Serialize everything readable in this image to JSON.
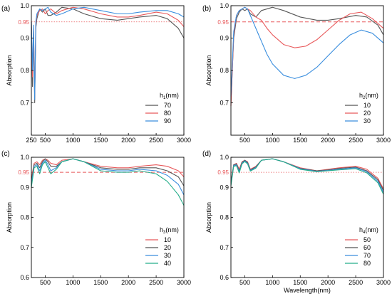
{
  "colors": {
    "black": "#555555",
    "red": "#e8595b",
    "blue": "#3a8ede",
    "green": "#25ad8a",
    "reference": "#e8595b"
  },
  "chart_data": [
    {
      "type": "line",
      "panel_label": "(a)",
      "xlabel": "",
      "ylabel": "Absorption",
      "xlim": [
        250,
        3000
      ],
      "ylim": [
        0.6,
        1.0
      ],
      "xticks": [
        "250",
        "500",
        "1000",
        "1500",
        "2000",
        "2500",
        "3000"
      ],
      "xtick_values": [
        250,
        500,
        1000,
        1500,
        2000,
        2500,
        3000
      ],
      "yticks": [
        "0.7",
        "0.8",
        "0.9",
        "0.95",
        "1.0"
      ],
      "ytick_values": [
        0.7,
        0.8,
        0.9,
        0.95,
        1.0
      ],
      "reference_line": {
        "y": 0.95,
        "label": "0.95",
        "style": "dotted"
      },
      "legend": {
        "title_base": "h",
        "title_sub": "1",
        "title_suffix": "(nm)",
        "position": "right"
      },
      "series": [
        {
          "name": "70",
          "color_key": "black",
          "x": [
            250,
            270,
            290,
            310,
            330,
            350,
            400,
            450,
            500,
            550,
            600,
            700,
            800,
            1000,
            1200,
            1500,
            1800,
            2000,
            2200,
            2500,
            2700,
            2900,
            3000
          ],
          "y": [
            0.95,
            0.75,
            0.92,
            0.7,
            0.93,
            0.96,
            0.99,
            0.98,
            0.99,
            0.97,
            0.97,
            0.98,
            0.995,
            0.99,
            0.975,
            0.96,
            0.955,
            0.96,
            0.965,
            0.97,
            0.96,
            0.93,
            0.9
          ]
        },
        {
          "name": "80",
          "color_key": "red",
          "x": [
            250,
            270,
            290,
            310,
            330,
            350,
            400,
            450,
            500,
            550,
            600,
            700,
            800,
            1000,
            1200,
            1500,
            1800,
            2000,
            2200,
            2500,
            2700,
            2900,
            3000
          ],
          "y": [
            0.95,
            0.78,
            0.93,
            0.72,
            0.94,
            0.97,
            0.985,
            0.99,
            0.975,
            0.985,
            0.99,
            0.975,
            0.985,
            0.995,
            0.99,
            0.975,
            0.965,
            0.965,
            0.97,
            0.98,
            0.975,
            0.955,
            0.935
          ]
        },
        {
          "name": "90",
          "color_key": "blue",
          "x": [
            250,
            270,
            290,
            310,
            330,
            350,
            400,
            450,
            500,
            550,
            600,
            700,
            800,
            1000,
            1200,
            1500,
            1800,
            2000,
            2200,
            2500,
            2700,
            2900,
            3000
          ],
          "y": [
            0.95,
            0.8,
            0.94,
            0.71,
            0.95,
            0.975,
            0.99,
            0.985,
            0.99,
            0.995,
            0.98,
            0.97,
            0.975,
            0.99,
            0.995,
            0.985,
            0.975,
            0.975,
            0.98,
            0.985,
            0.985,
            0.975,
            0.965
          ]
        }
      ]
    },
    {
      "type": "line",
      "panel_label": "(b)",
      "xlabel": "",
      "ylabel": "Absorption",
      "xlim": [
        250,
        3000
      ],
      "ylim": [
        0.6,
        1.0
      ],
      "xticks": [
        "500",
        "1000",
        "1500",
        "2000",
        "2500",
        "3000"
      ],
      "xtick_values": [
        500,
        1000,
        1500,
        2000,
        2500,
        3000
      ],
      "yticks": [
        "0.7",
        "0.8",
        "0.9",
        "0.95",
        "1.0"
      ],
      "ytick_values": [
        0.7,
        0.8,
        0.9,
        0.95,
        1.0
      ],
      "reference_line": {
        "y": 0.95,
        "label": "0.95",
        "style": "dashed"
      },
      "legend": {
        "title_base": "h",
        "title_sub": "2",
        "title_suffix": "(nm)",
        "position": "right"
      },
      "series": [
        {
          "name": "10",
          "color_key": "black",
          "x": [
            250,
            300,
            350,
            400,
            450,
            500,
            550,
            600,
            700,
            800,
            1000,
            1200,
            1500,
            1800,
            2000,
            2200,
            2500,
            2700,
            2900,
            3000
          ],
          "y": [
            0.7,
            0.9,
            0.96,
            0.98,
            0.99,
            0.985,
            0.99,
            0.975,
            0.965,
            0.985,
            0.995,
            0.985,
            0.965,
            0.955,
            0.955,
            0.96,
            0.97,
            0.965,
            0.94,
            0.91
          ]
        },
        {
          "name": "20",
          "color_key": "red",
          "x": [
            250,
            300,
            350,
            400,
            450,
            500,
            550,
            600,
            700,
            800,
            900,
            1000,
            1200,
            1400,
            1600,
            1800,
            2000,
            2200,
            2400,
            2600,
            2800,
            3000
          ],
          "y": [
            0.69,
            0.91,
            0.97,
            0.985,
            0.99,
            0.995,
            0.99,
            0.985,
            0.965,
            0.955,
            0.93,
            0.91,
            0.88,
            0.87,
            0.875,
            0.895,
            0.925,
            0.955,
            0.975,
            0.98,
            0.96,
            0.93
          ]
        },
        {
          "name": "30",
          "color_key": "blue",
          "x": [
            250,
            300,
            350,
            400,
            450,
            500,
            550,
            600,
            700,
            800,
            900,
            1000,
            1200,
            1400,
            1600,
            1800,
            2000,
            2200,
            2400,
            2600,
            2800,
            3000
          ],
          "y": [
            0.72,
            0.92,
            0.97,
            0.985,
            0.99,
            0.995,
            0.99,
            0.97,
            0.93,
            0.89,
            0.85,
            0.82,
            0.785,
            0.775,
            0.785,
            0.81,
            0.845,
            0.88,
            0.91,
            0.925,
            0.915,
            0.885
          ]
        }
      ]
    },
    {
      "type": "line",
      "panel_label": "(c)",
      "xlabel": "",
      "ylabel": "Absorption",
      "xlim": [
        250,
        3000
      ],
      "ylim": [
        0.6,
        1.0
      ],
      "xticks": [
        "500",
        "1000",
        "1500",
        "2000",
        "2500",
        "3000"
      ],
      "xtick_values": [
        500,
        1000,
        1500,
        2000,
        2500,
        3000
      ],
      "yticks": [
        "0.6",
        "0.7",
        "0.8",
        "0.9",
        "0.95",
        "1.0"
      ],
      "ytick_values": [
        0.6,
        0.7,
        0.8,
        0.9,
        0.95,
        1.0
      ],
      "reference_line": {
        "y": 0.95,
        "label": "0.95",
        "style": "dashed"
      },
      "legend": {
        "title_base": "h",
        "title_sub": "3",
        "title_suffix": "(nm)",
        "position": "right"
      },
      "series": [
        {
          "name": "10",
          "color_key": "red",
          "x": [
            250,
            300,
            350,
            400,
            450,
            500,
            550,
            600,
            700,
            800,
            1000,
            1200,
            1500,
            1800,
            2000,
            2200,
            2500,
            2700,
            2900,
            3000
          ],
          "y": [
            0.93,
            0.98,
            0.985,
            0.975,
            0.99,
            0.995,
            0.99,
            0.98,
            0.975,
            0.99,
            0.995,
            0.985,
            0.97,
            0.965,
            0.965,
            0.97,
            0.975,
            0.97,
            0.955,
            0.935
          ]
        },
        {
          "name": "20",
          "color_key": "black",
          "x": [
            250,
            300,
            350,
            400,
            450,
            500,
            550,
            600,
            700,
            800,
            1000,
            1200,
            1500,
            1800,
            2000,
            2200,
            2500,
            2700,
            2900,
            3000
          ],
          "y": [
            0.92,
            0.975,
            0.98,
            0.965,
            0.985,
            0.995,
            0.985,
            0.97,
            0.97,
            0.985,
            0.995,
            0.985,
            0.965,
            0.96,
            0.96,
            0.965,
            0.965,
            0.955,
            0.935,
            0.905
          ]
        },
        {
          "name": "30",
          "color_key": "blue",
          "x": [
            250,
            300,
            350,
            400,
            450,
            500,
            550,
            600,
            700,
            800,
            1000,
            1200,
            1500,
            1800,
            2000,
            2200,
            2500,
            2700,
            2900,
            3000
          ],
          "y": [
            0.91,
            0.97,
            0.975,
            0.955,
            0.98,
            0.99,
            0.975,
            0.955,
            0.965,
            0.985,
            0.995,
            0.985,
            0.96,
            0.955,
            0.955,
            0.96,
            0.955,
            0.94,
            0.91,
            0.875
          ]
        },
        {
          "name": "40",
          "color_key": "green",
          "x": [
            250,
            300,
            350,
            400,
            450,
            500,
            550,
            600,
            700,
            800,
            1000,
            1200,
            1500,
            1800,
            2000,
            2200,
            2500,
            2700,
            2900,
            3000
          ],
          "y": [
            0.9,
            0.965,
            0.97,
            0.945,
            0.975,
            0.985,
            0.965,
            0.945,
            0.96,
            0.985,
            0.995,
            0.985,
            0.955,
            0.95,
            0.95,
            0.955,
            0.945,
            0.92,
            0.875,
            0.84
          ]
        }
      ]
    },
    {
      "type": "line",
      "panel_label": "(d)",
      "xlabel": "Wavelength(nm)",
      "ylabel": "Absorption",
      "xlim": [
        250,
        3000
      ],
      "ylim": [
        0.6,
        1.0
      ],
      "xticks": [
        "500",
        "1000",
        "1500",
        "2000",
        "2500",
        "3000"
      ],
      "xtick_values": [
        500,
        1000,
        1500,
        2000,
        2500,
        3000
      ],
      "yticks": [
        "0.6",
        "0.7",
        "0.8",
        "0.9",
        "0.95",
        "1.0"
      ],
      "ytick_values": [
        0.6,
        0.7,
        0.8,
        0.9,
        0.95,
        1.0
      ],
      "reference_line": {
        "y": 0.95,
        "label": "0.95",
        "style": "dotted"
      },
      "legend": {
        "title_base": "h",
        "title_sub": "4",
        "title_suffix": "(nm)",
        "position": "right"
      },
      "series": [
        {
          "name": "50",
          "color_key": "red",
          "x": [
            250,
            300,
            350,
            400,
            450,
            500,
            550,
            600,
            700,
            800,
            1000,
            1200,
            1500,
            1800,
            2000,
            2200,
            2500,
            2700,
            2900,
            3000
          ],
          "y": [
            0.92,
            0.975,
            0.98,
            0.96,
            0.985,
            0.99,
            0.985,
            0.96,
            0.97,
            0.99,
            0.995,
            0.985,
            0.965,
            0.955,
            0.96,
            0.965,
            0.97,
            0.96,
            0.93,
            0.895
          ]
        },
        {
          "name": "60",
          "color_key": "black",
          "x": [
            250,
            300,
            350,
            400,
            450,
            500,
            550,
            600,
            700,
            800,
            1000,
            1200,
            1500,
            1800,
            2000,
            2200,
            2500,
            2700,
            2900,
            3000
          ],
          "y": [
            0.915,
            0.975,
            0.978,
            0.955,
            0.983,
            0.99,
            0.983,
            0.958,
            0.968,
            0.99,
            0.995,
            0.985,
            0.963,
            0.955,
            0.958,
            0.963,
            0.967,
            0.955,
            0.925,
            0.89
          ]
        },
        {
          "name": "70",
          "color_key": "blue",
          "x": [
            250,
            300,
            350,
            400,
            450,
            500,
            550,
            600,
            700,
            800,
            1000,
            1200,
            1500,
            1800,
            2000,
            2200,
            2500,
            2700,
            2900,
            3000
          ],
          "y": [
            0.91,
            0.972,
            0.975,
            0.952,
            0.98,
            0.988,
            0.98,
            0.956,
            0.966,
            0.99,
            0.995,
            0.985,
            0.962,
            0.953,
            0.956,
            0.96,
            0.965,
            0.952,
            0.92,
            0.883
          ]
        },
        {
          "name": "80",
          "color_key": "green",
          "x": [
            250,
            300,
            350,
            400,
            450,
            500,
            550,
            600,
            700,
            800,
            1000,
            1200,
            1500,
            1800,
            2000,
            2200,
            2500,
            2700,
            2900,
            3000
          ],
          "y": [
            0.905,
            0.97,
            0.972,
            0.948,
            0.978,
            0.986,
            0.978,
            0.954,
            0.964,
            0.99,
            0.995,
            0.985,
            0.96,
            0.952,
            0.955,
            0.958,
            0.962,
            0.948,
            0.915,
            0.877
          ]
        }
      ]
    }
  ]
}
